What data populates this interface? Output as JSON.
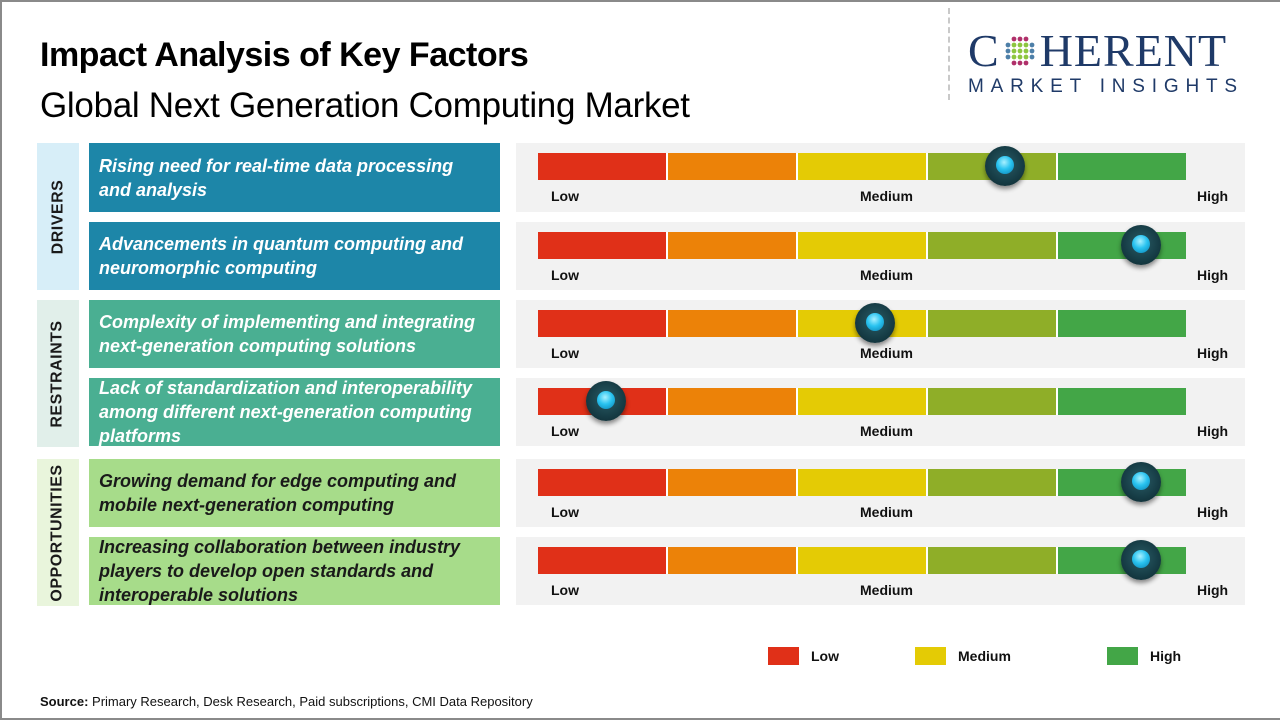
{
  "header": {
    "title": "Impact Analysis of Key Factors",
    "subtitle": "Global Next Generation Computing Market"
  },
  "logo": {
    "main_prefix": "C",
    "main_suffix": "HERENT",
    "sub": "MARKET INSIGHTS",
    "icon": "globe-dots-icon"
  },
  "colors": {
    "drivers_band": "#d7eef8",
    "drivers_box": "#1d86a8",
    "restraints_band": "#e1efea",
    "restraints_box": "#4aaf92",
    "opportunities_band": "#e9f5dc",
    "opportunities_box": "#a7dc8a",
    "scale": [
      "#e03018",
      "#ec8208",
      "#e4cb05",
      "#8fae28",
      "#43a647"
    ]
  },
  "scale_labels": {
    "low": "Low",
    "medium": "Medium",
    "high": "High"
  },
  "chart_data": {
    "type": "table",
    "title": "Impact Analysis of Key Factors",
    "subtitle": "Global Next Generation Computing Market",
    "scale": {
      "min_label": "Low",
      "mid_label": "Medium",
      "max_label": "High",
      "range": [
        0,
        1
      ]
    },
    "categories": [
      {
        "name": "DRIVERS",
        "factors": [
          {
            "text": "Rising need for real-time data processing and analysis",
            "impact": 0.72
          },
          {
            "text": "Advancements in quantum computing and neuromorphic computing",
            "impact": 0.93
          }
        ]
      },
      {
        "name": "RESTRAINTS",
        "factors": [
          {
            "text": "Complexity of implementing and integrating next-generation computing solutions",
            "impact": 0.52
          },
          {
            "text": "Lack of standardization and interoperability among different next-generation computing platforms",
            "impact": 0.105
          }
        ]
      },
      {
        "name": "OPPORTUNITIES",
        "factors": [
          {
            "text": "Growing demand for edge computing and mobile next-generation computing",
            "impact": 0.93
          },
          {
            "text": "Increasing collaboration between industry players to develop open standards and interoperable solutions",
            "impact": 0.93
          }
        ]
      }
    ],
    "legend": [
      {
        "label": "Low",
        "color": "#e03018"
      },
      {
        "label": "Medium",
        "color": "#e4cb05"
      },
      {
        "label": "High",
        "color": "#43a647"
      }
    ],
    "legend_position": "bottom-right"
  },
  "footer": {
    "source_label": "Source:",
    "source_text": " Primary Research, Desk Research, Paid subscriptions, CMI Data Repository"
  }
}
